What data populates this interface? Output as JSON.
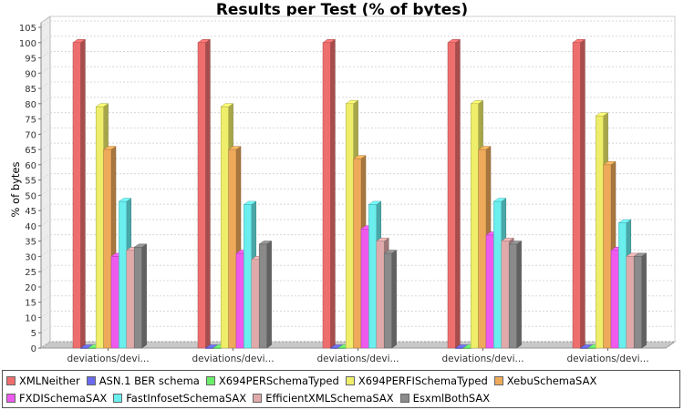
{
  "chart_data": {
    "type": "bar",
    "title": "Results per Test (% of bytes)",
    "ylabel": "% of bytes",
    "xlabel": "",
    "ylim": [
      0,
      105
    ],
    "yticks": [
      0,
      5,
      10,
      15,
      20,
      25,
      30,
      35,
      40,
      45,
      50,
      55,
      60,
      65,
      70,
      75,
      80,
      85,
      90,
      95,
      100,
      105
    ],
    "grid": true,
    "legend_position": "bottom",
    "categories": [
      "deviations/devi...",
      "deviations/devi...",
      "deviations/devi...",
      "deviations/devi...",
      "deviations/devi..."
    ],
    "series": [
      {
        "name": "XMLNeither",
        "color": "#ee6e6e",
        "values": [
          100,
          100,
          100,
          100,
          100
        ]
      },
      {
        "name": "ASN.1 BER schema",
        "color": "#6a6aee",
        "values": [
          0,
          0,
          0,
          0,
          0
        ]
      },
      {
        "name": "X694PERSchemaTyped",
        "color": "#6aee6a",
        "values": [
          0,
          0,
          0,
          0,
          0
        ]
      },
      {
        "name": "X694PERFISchemaTyped",
        "color": "#eeee6a",
        "values": [
          79,
          79,
          80,
          80,
          76
        ]
      },
      {
        "name": "XebuSchemaSAX",
        "color": "#eeaa5a",
        "values": [
          65,
          65,
          62,
          65,
          60
        ]
      },
      {
        "name": "FXDISchemaSAX",
        "color": "#ee5aee",
        "values": [
          30,
          31,
          39,
          37,
          32
        ]
      },
      {
        "name": "FastInfosetSchemaSAX",
        "color": "#6aeeee",
        "values": [
          48,
          47,
          47,
          48,
          41
        ]
      },
      {
        "name": "EfficientXMLSchemaSAX",
        "color": "#e0aaaa",
        "values": [
          32,
          29,
          35,
          35,
          30
        ]
      },
      {
        "name": "EsxmlBothSAX",
        "color": "#8a8a8a",
        "values": [
          33,
          34,
          31,
          34,
          30
        ]
      }
    ]
  }
}
